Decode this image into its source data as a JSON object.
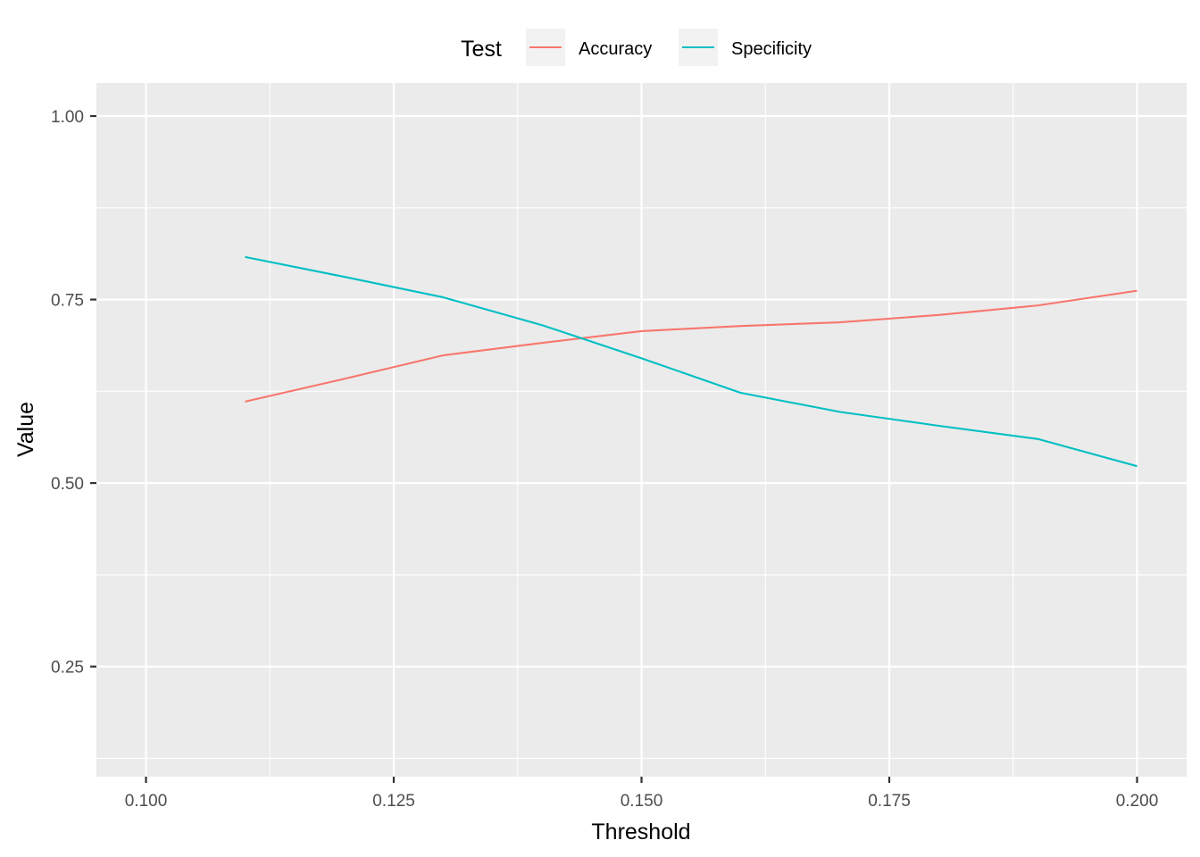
{
  "chart_data": {
    "type": "line",
    "title": "",
    "xlabel": "Threshold",
    "ylabel": "Value",
    "xlim": [
      0.095,
      0.205
    ],
    "ylim": [
      0.1,
      1.045
    ],
    "x_ticks": [
      0.1,
      0.125,
      0.15,
      0.175,
      0.2
    ],
    "x_tick_labels": [
      "0.100",
      "0.125",
      "0.150",
      "0.175",
      "0.200"
    ],
    "y_ticks": [
      0.25,
      0.5,
      0.75,
      1.0
    ],
    "y_tick_labels": [
      "0.25",
      "0.50",
      "0.75",
      "1.00"
    ],
    "grid": true,
    "legend": {
      "title": "Test",
      "position": "top"
    },
    "series": [
      {
        "name": "Accuracy",
        "color": "#F8766D",
        "x": [
          0.11,
          0.12,
          0.13,
          0.14,
          0.15,
          0.16,
          0.17,
          0.18,
          0.19,
          0.2
        ],
        "values": [
          0.611,
          0.642,
          0.674,
          0.691,
          0.707,
          0.714,
          0.719,
          0.729,
          0.742,
          0.762
        ]
      },
      {
        "name": "Specificity",
        "color": "#00BFC4",
        "x": [
          0.11,
          0.12,
          0.13,
          0.14,
          0.15,
          0.16,
          0.17,
          0.18,
          0.19,
          0.2
        ],
        "values": [
          0.808,
          0.781,
          0.753,
          0.715,
          0.67,
          0.623,
          0.597,
          0.578,
          0.56,
          0.523
        ]
      }
    ]
  }
}
